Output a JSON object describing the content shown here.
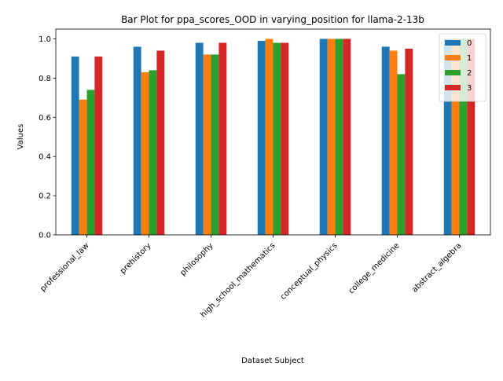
{
  "chart_data": {
    "type": "bar",
    "title": "Bar Plot for ppa_scores_OOD in varying_position for llama-2-13b",
    "xlabel": "Dataset Subject",
    "ylabel": "Values",
    "ylim": [
      0,
      1.05
    ],
    "yticks": [
      "0.0",
      "0.2",
      "0.4",
      "0.6",
      "0.8",
      "1.0"
    ],
    "grid": false,
    "legend_position": "top-right",
    "categories": [
      "professional_law",
      "prehistory",
      "philosophy",
      "high_school_mathematics",
      "conceptual_physics",
      "college_medicine",
      "abstract_algebra"
    ],
    "series": [
      {
        "name": "0",
        "color": "#1f77b4",
        "values": [
          0.91,
          0.96,
          0.98,
          0.99,
          1.0,
          0.96,
          1.0
        ]
      },
      {
        "name": "1",
        "color": "#ff7f0e",
        "values": [
          0.69,
          0.83,
          0.92,
          1.0,
          1.0,
          0.94,
          1.0
        ]
      },
      {
        "name": "2",
        "color": "#2ca02c",
        "values": [
          0.74,
          0.84,
          0.92,
          0.98,
          1.0,
          0.82,
          1.0
        ]
      },
      {
        "name": "3",
        "color": "#d62728",
        "values": [
          0.91,
          0.94,
          0.98,
          0.98,
          1.0,
          0.95,
          1.0
        ]
      }
    ]
  }
}
